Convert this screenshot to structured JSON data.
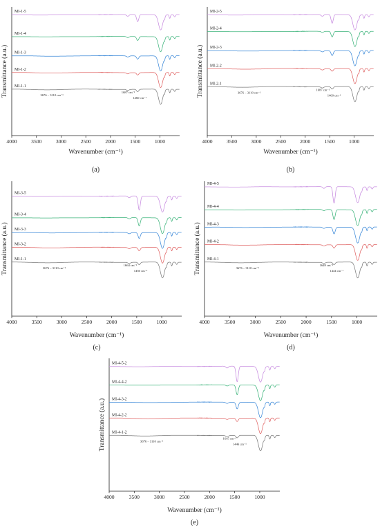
{
  "chart_data": [
    {
      "type": "line",
      "panel_label": "(a)",
      "xlabel": "Wavenumber (cm⁻¹)",
      "ylabel": "Transmittance (a.u.)",
      "xlim": [
        4000,
        600
      ],
      "xticks": [
        4000,
        3500,
        3000,
        2500,
        2000,
        1500,
        1000
      ],
      "series": [
        {
          "name": "MI-1-1",
          "color": "#7a7a7a",
          "baseline": 0.64,
          "p1450": 0.03,
          "p1650": 0.02
        },
        {
          "name": "MI-1-2",
          "color": "#e06464",
          "baseline": 0.51,
          "p1450": 0.03,
          "p1650": 0.02
        },
        {
          "name": "MI-1-3",
          "color": "#3a88d8",
          "baseline": 0.38,
          "p1450": 0.04,
          "p1650": 0.02
        },
        {
          "name": "MI-1-4",
          "color": "#3bb37a",
          "baseline": 0.23,
          "p1450": 0.05,
          "p1650": 0.02
        },
        {
          "name": "MI-1-5",
          "color": "#c78be0",
          "baseline": 0.06,
          "p1450": 0.09,
          "p1650": 0.03
        }
      ],
      "annotations": [
        "3676 – 3110 cm⁻¹",
        "1687 cm⁻¹",
        "1460 cm⁻¹"
      ]
    },
    {
      "type": "line",
      "panel_label": "(b)",
      "xlabel": "Wavenumber (cm⁻¹)",
      "ylabel": "Transmittance (a.u.)",
      "xlim": [
        4000,
        600
      ],
      "xticks": [
        4000,
        3500,
        3000,
        2500,
        2000,
        1500,
        1000
      ],
      "series": [
        {
          "name": "MI-2-1",
          "color": "#7a7a7a",
          "baseline": 0.62,
          "p1450": 0.03,
          "p1650": 0.02
        },
        {
          "name": "MI-2-2",
          "color": "#e06464",
          "baseline": 0.48,
          "p1450": 0.03,
          "p1650": 0.02
        },
        {
          "name": "MI-2-3",
          "color": "#3a88d8",
          "baseline": 0.34,
          "p1450": 0.06,
          "p1650": 0.02
        },
        {
          "name": "MI-2-4",
          "color": "#3bb37a",
          "baseline": 0.19,
          "p1450": 0.07,
          "p1650": 0.02
        },
        {
          "name": "MI-2-5",
          "color": "#c78be0",
          "baseline": 0.06,
          "p1450": 0.11,
          "p1650": 0.03
        }
      ],
      "annotations": [
        "3676 – 3110 cm⁻¹",
        "1687 cm⁻¹",
        "1460 cm⁻¹"
      ]
    },
    {
      "type": "line",
      "panel_label": "(c)",
      "xlabel": "Wavenumber (cm⁻¹)",
      "ylabel": "Transmittance (a.u.)",
      "xlim": [
        4000,
        600
      ],
      "xticks": [
        4000,
        3500,
        3000,
        2500,
        2000,
        1500,
        1000
      ],
      "series": [
        {
          "name": "MI-1-1",
          "color": "#7a7a7a",
          "baseline": 0.6,
          "p1450": 0.03,
          "p1650": 0.02
        },
        {
          "name": "MI-3-2",
          "color": "#e06464",
          "baseline": 0.49,
          "p1450": 0.04,
          "p1650": 0.02
        },
        {
          "name": "MI-3-3",
          "color": "#3a88d8",
          "baseline": 0.38,
          "p1450": 0.07,
          "p1650": 0.02
        },
        {
          "name": "MI-3-4",
          "color": "#3bb37a",
          "baseline": 0.27,
          "p1450": 0.1,
          "p1650": 0.02
        },
        {
          "name": "MI-3-5",
          "color": "#c78be0",
          "baseline": 0.11,
          "p1450": 0.17,
          "p1650": 0.03
        }
      ],
      "annotations": [
        "3676 – 3110 cm⁻¹",
        "1664 cm⁻¹",
        "1450 cm⁻¹"
      ]
    },
    {
      "type": "line",
      "panel_label": "(d)",
      "xlabel": "Wavenumber (cm⁻¹)",
      "ylabel": "Transmittance (a.u.)",
      "xlim": [
        4000,
        600
      ],
      "xticks": [
        4000,
        3500,
        3000,
        2500,
        2000,
        1500,
        1000
      ],
      "series": [
        {
          "name": "MI-4-1",
          "color": "#7a7a7a",
          "baseline": 0.6,
          "p1450": 0.03,
          "p1650": 0.02
        },
        {
          "name": "MI-4-2",
          "color": "#e06464",
          "baseline": 0.47,
          "p1450": 0.04,
          "p1650": 0.02
        },
        {
          "name": "MI-4-3",
          "color": "#3a88d8",
          "baseline": 0.34,
          "p1450": 0.08,
          "p1650": 0.02
        },
        {
          "name": "MI-4-4",
          "color": "#3bb37a",
          "baseline": 0.21,
          "p1450": 0.12,
          "p1650": 0.02
        },
        {
          "name": "MI-4-5",
          "color": "#c78be0",
          "baseline": 0.04,
          "p1450": 0.2,
          "p1650": 0.03
        }
      ],
      "annotations": [
        "3676 – 3110 cm⁻¹",
        "1649 cm⁻¹",
        "1444 cm⁻¹"
      ]
    },
    {
      "type": "line",
      "panel_label": "(e)",
      "xlabel": "Wavenumber (cm⁻¹)",
      "ylabel": "Transmittance (a.u.)",
      "xlim": [
        4000,
        600
      ],
      "xticks": [
        4000,
        3500,
        3000,
        2500,
        2000,
        1500,
        1000
      ],
      "series": [
        {
          "name": "MI-4-1-2",
          "color": "#7a7a7a",
          "baseline": 0.58,
          "p1450": 0.03,
          "p1650": 0.02
        },
        {
          "name": "MI-4-2-2",
          "color": "#e06464",
          "baseline": 0.45,
          "p1450": 0.04,
          "p1650": 0.02
        },
        {
          "name": "MI-4-3-2",
          "color": "#3a88d8",
          "baseline": 0.33,
          "p1450": 0.08,
          "p1650": 0.02
        },
        {
          "name": "MI-4-4-2",
          "color": "#3bb37a",
          "baseline": 0.2,
          "p1450": 0.12,
          "p1650": 0.02
        },
        {
          "name": "MI-4-5-2",
          "color": "#c78be0",
          "baseline": 0.06,
          "p1450": 0.19,
          "p1650": 0.03
        }
      ],
      "annotations": [
        "3676 – 3110 cm⁻¹",
        "1645 cm⁻¹",
        "1446 cm⁻¹"
      ]
    }
  ]
}
